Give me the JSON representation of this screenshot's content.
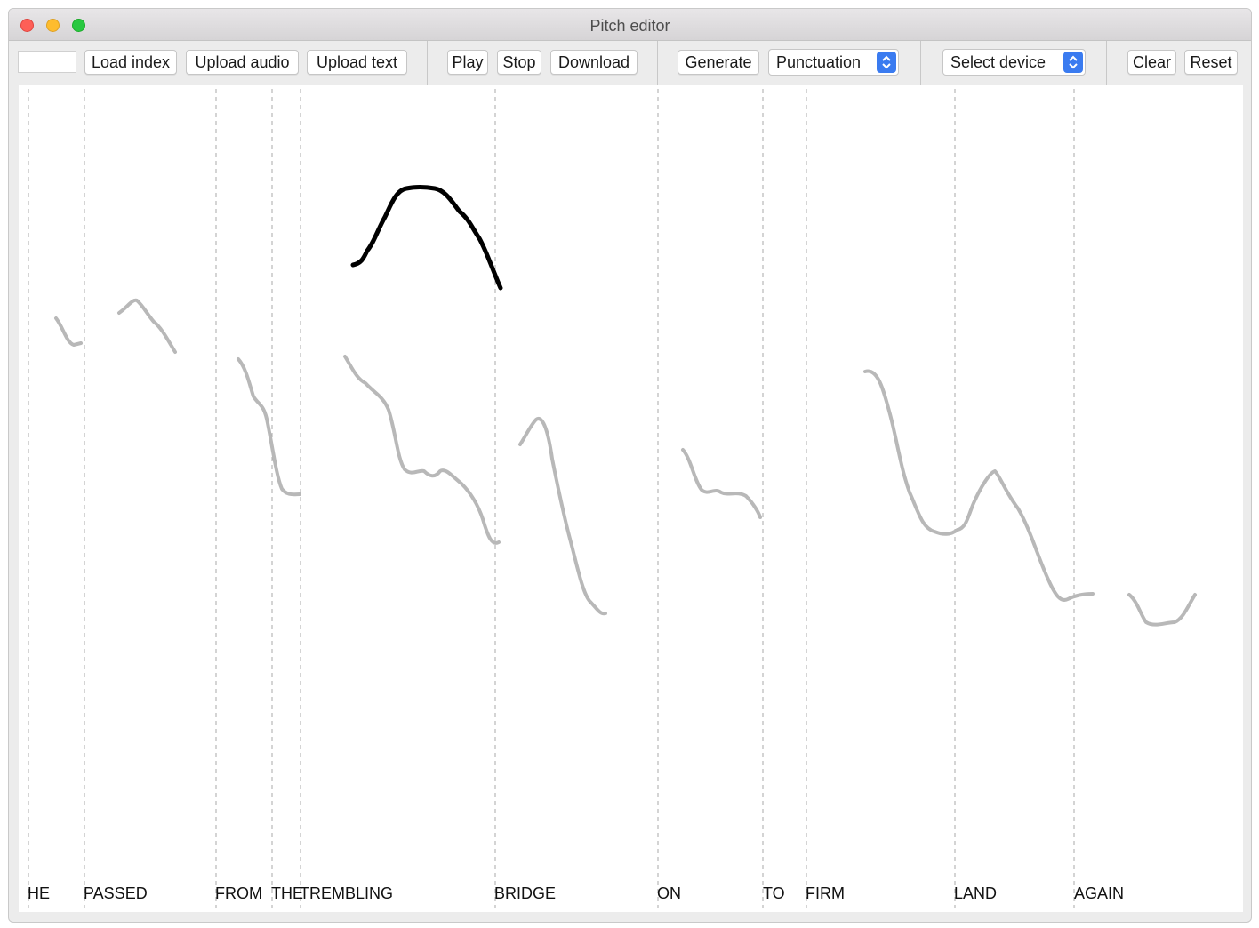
{
  "window": {
    "title": "Pitch editor"
  },
  "toolbar": {
    "load_index": "Load index",
    "upload_audio": "Upload audio",
    "upload_text": "Upload text",
    "play": "Play",
    "stop": "Stop",
    "download": "Download",
    "generate": "Generate",
    "punctuation_select": "Punctuation",
    "device_select": "Select device",
    "clear": "Clear",
    "reset": "Reset"
  },
  "words": [
    "HE",
    "PASSED",
    "FROM",
    "THE",
    "TREMBLING",
    "BRIDGE",
    "ON",
    "TO",
    "FIRM",
    "LAND",
    "AGAIN"
  ],
  "colors": {
    "pitch_contour": "#b8b8b8",
    "drawn_contour": "#000000",
    "boundary": "#aaaaaa",
    "select_accent": "#3a7bf0"
  }
}
